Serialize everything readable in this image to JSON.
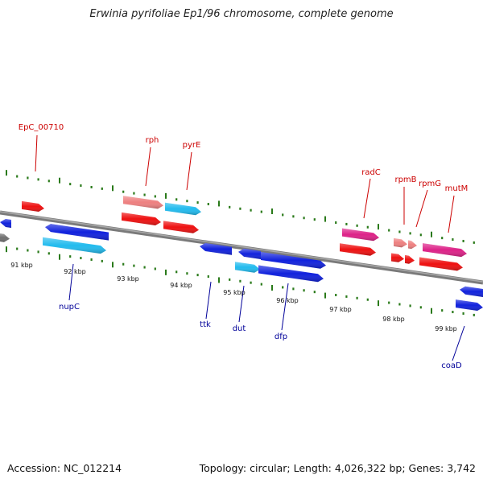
{
  "title": "Erwinia pyrifoliae Ep1/96 chromosome, complete genome",
  "footer": {
    "accession": "Accession: NC_012214",
    "topology": "Topology: circular; Length: 4,026,322 bp; Genes: 3,742"
  },
  "colors": {
    "backbone": "#808080",
    "tick": "#2a7a1a",
    "label_top": "#cc0000",
    "label_bottom": "#000099",
    "red": "#ee1111",
    "salmon": "#ee8080",
    "cyan": "#22bbee",
    "blue": "#1122dd",
    "magenta": "#dd2288",
    "gray": "#707070"
  },
  "scale_labels": [
    "91 kbp",
    "92 kbp",
    "93 kbp",
    "94 kbp",
    "95 kbp",
    "96 kbp",
    "97 kbp",
    "98 kbp",
    "99 kbp"
  ],
  "top_gene_labels": [
    "EpC_00710",
    "rph",
    "pyrE",
    "radC",
    "rpmB",
    "rpmG",
    "mutM"
  ],
  "bottom_gene_labels": [
    "nupC",
    "ttk",
    "dut",
    "dfp",
    "coaD"
  ]
}
